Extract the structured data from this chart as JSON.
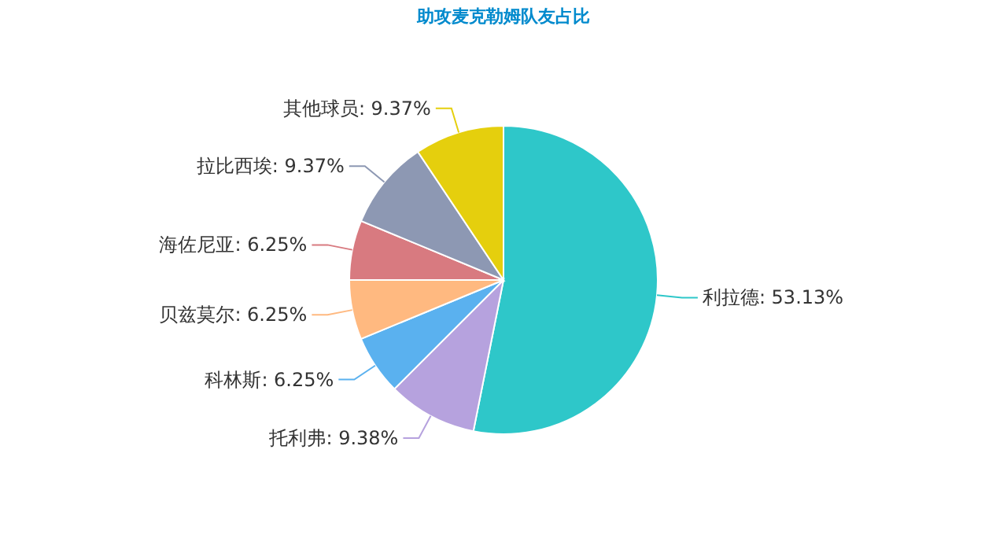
{
  "chart_data": {
    "type": "pie",
    "title": "助攻麦克勒姆队友占比",
    "categories": [
      "利拉德",
      "托利弗",
      "科林斯",
      "贝兹莫尔",
      "海佐尼亚",
      "拉比西埃",
      "其他球员"
    ],
    "values": [
      53.13,
      9.38,
      6.25,
      6.25,
      6.25,
      9.37,
      9.37
    ],
    "value_labels": [
      "53.13%",
      "9.38%",
      "6.25%",
      "6.25%",
      "6.25%",
      "9.37%",
      "9.37%"
    ],
    "colors": [
      "#2ec7c9",
      "#b6a2de",
      "#5ab1ef",
      "#ffb980",
      "#d87a80",
      "#8d98b3",
      "#e5cf0d"
    ]
  }
}
